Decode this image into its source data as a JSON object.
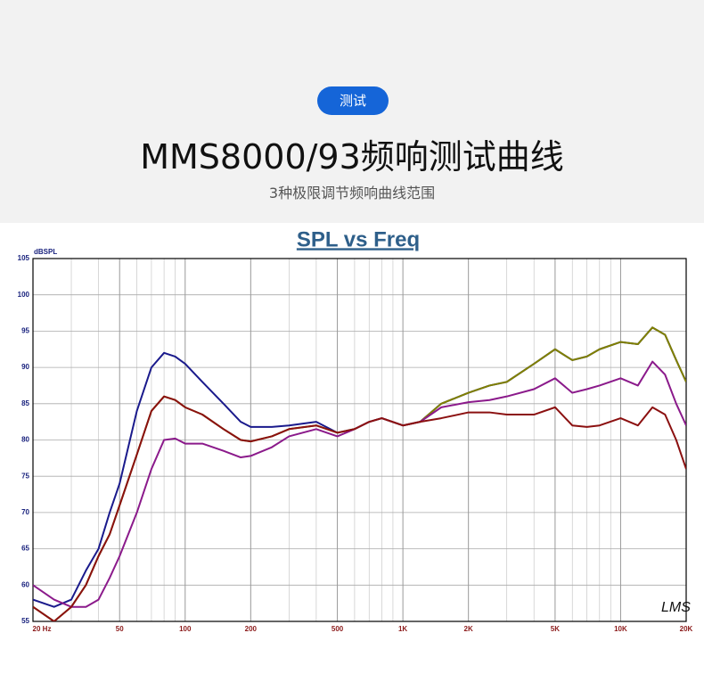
{
  "header": {
    "badge": "测试",
    "title": "MMS8000/93频响测试曲线",
    "subtitle": "3种极限调节频响曲线范围"
  },
  "chart_data": {
    "type": "line",
    "title": "SPL vs Freq",
    "y_label": "dBSPL",
    "watermark": "LMS",
    "x_log": true,
    "grid": true,
    "xlim": [
      20,
      20000
    ],
    "ylim": [
      55,
      105
    ],
    "xticks": [
      {
        "value": 20,
        "label": "20 Hz"
      },
      50,
      100,
      200,
      500,
      {
        "value": 1000,
        "label": "1K"
      },
      {
        "value": 2000,
        "label": "2K"
      },
      {
        "value": 5000,
        "label": "5K"
      },
      {
        "value": 10000,
        "label": "10K"
      },
      {
        "value": 20000,
        "label": "20K"
      }
    ],
    "xminorticks": [
      30,
      40,
      60,
      70,
      80,
      90,
      300,
      400,
      600,
      700,
      800,
      900,
      3000,
      4000,
      6000,
      7000,
      8000,
      9000
    ],
    "yticks": [
      55,
      60,
      65,
      70,
      75,
      80,
      85,
      90,
      95,
      100,
      105
    ],
    "x": [
      20,
      25,
      30,
      35,
      40,
      45,
      50,
      60,
      70,
      80,
      90,
      100,
      120,
      150,
      180,
      200,
      250,
      300,
      400,
      500,
      600,
      700,
      800,
      1000,
      1200,
      1500,
      2000,
      2500,
      3000,
      4000,
      5000,
      6000,
      7000,
      8000,
      10000,
      12000,
      14000,
      16000,
      18000,
      20000
    ],
    "series": [
      {
        "color": "#1a1a8c",
        "values": [
          58,
          57,
          58,
          62,
          65,
          70,
          74,
          84,
          90,
          92,
          91.5,
          90.5,
          88,
          85,
          82.5,
          81.8,
          81.8,
          82,
          82.5,
          81,
          81.5,
          82.5,
          83,
          82,
          82.5,
          85,
          86.5,
          87.5,
          88,
          90.5,
          92.5,
          91,
          91.5,
          92.5,
          93.5,
          93.2,
          95.5,
          94.5,
          91,
          88
        ]
      },
      {
        "color": "#808000",
        "values": [
          57,
          55,
          57,
          60,
          64,
          67,
          71,
          78,
          84,
          86,
          85.5,
          84.5,
          83.5,
          81.5,
          80,
          79.8,
          80.5,
          81.5,
          82,
          81,
          81.5,
          82.5,
          83,
          82,
          82.5,
          85,
          86.5,
          87.5,
          88,
          90.5,
          92.5,
          91,
          91.5,
          92.5,
          93.5,
          93.2,
          95.5,
          94.5,
          91,
          88
        ]
      },
      {
        "color": "#8b1a8b",
        "values": [
          60,
          58,
          57,
          57,
          58,
          61,
          64,
          70,
          76,
          80,
          80.2,
          79.5,
          79.5,
          78.5,
          77.6,
          77.8,
          79,
          80.5,
          81.5,
          80.5,
          81.5,
          82.5,
          83,
          82,
          82.5,
          84.5,
          85.2,
          85.5,
          86,
          87,
          88.5,
          86.5,
          87,
          87.5,
          88.5,
          87.5,
          90.8,
          89,
          85,
          82
        ]
      },
      {
        "color": "#8b1010",
        "values": [
          57,
          55,
          57,
          60,
          64,
          67,
          71,
          78,
          84,
          86,
          85.5,
          84.5,
          83.5,
          81.5,
          80,
          79.8,
          80.5,
          81.5,
          82,
          81,
          81.5,
          82.5,
          83,
          82,
          82.5,
          83,
          83.8,
          83.8,
          83.5,
          83.5,
          84.5,
          82,
          81.8,
          82,
          83,
          82,
          84.5,
          83.5,
          80,
          76
        ]
      }
    ]
  }
}
